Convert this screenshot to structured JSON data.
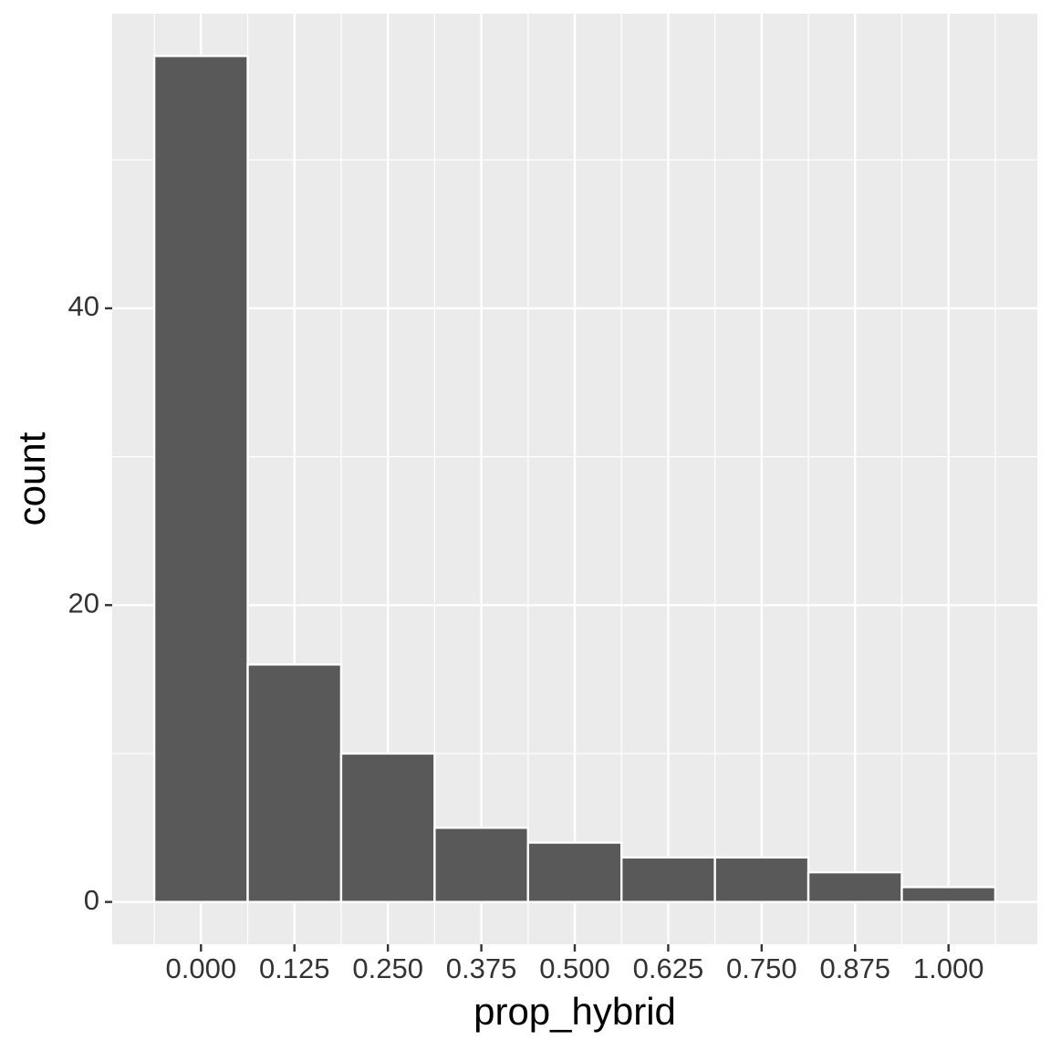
{
  "chart_data": {
    "type": "histogram",
    "x_label": "prop_hybrid",
    "y_label": "count",
    "bins": [
      -0.0625,
      0.0625,
      0.1875,
      0.3125,
      0.4375,
      0.5625,
      0.6875,
      0.8125,
      0.9375,
      1.0625
    ],
    "values": [
      57,
      16,
      10,
      5,
      4,
      3,
      3,
      2,
      1
    ],
    "color": "#595959",
    "xlim": [
      -0.11875,
      1.11875
    ],
    "xticks": [
      {
        "value": 0,
        "label": "0.000"
      },
      {
        "value": 0.125,
        "label": "0.125"
      },
      {
        "value": 0.25,
        "label": "0.250"
      },
      {
        "value": 0.375,
        "label": "0.375"
      },
      {
        "value": 0.5,
        "label": "0.500"
      },
      {
        "value": 0.625,
        "label": "0.625"
      },
      {
        "value": 0.75,
        "label": "0.750"
      },
      {
        "value": 0.875,
        "label": "0.875"
      },
      {
        "value": 1,
        "label": "1.000"
      }
    ],
    "ylim": [
      -2.85,
      59.85
    ],
    "yticks": [
      0,
      20,
      40
    ],
    "grid": true
  }
}
